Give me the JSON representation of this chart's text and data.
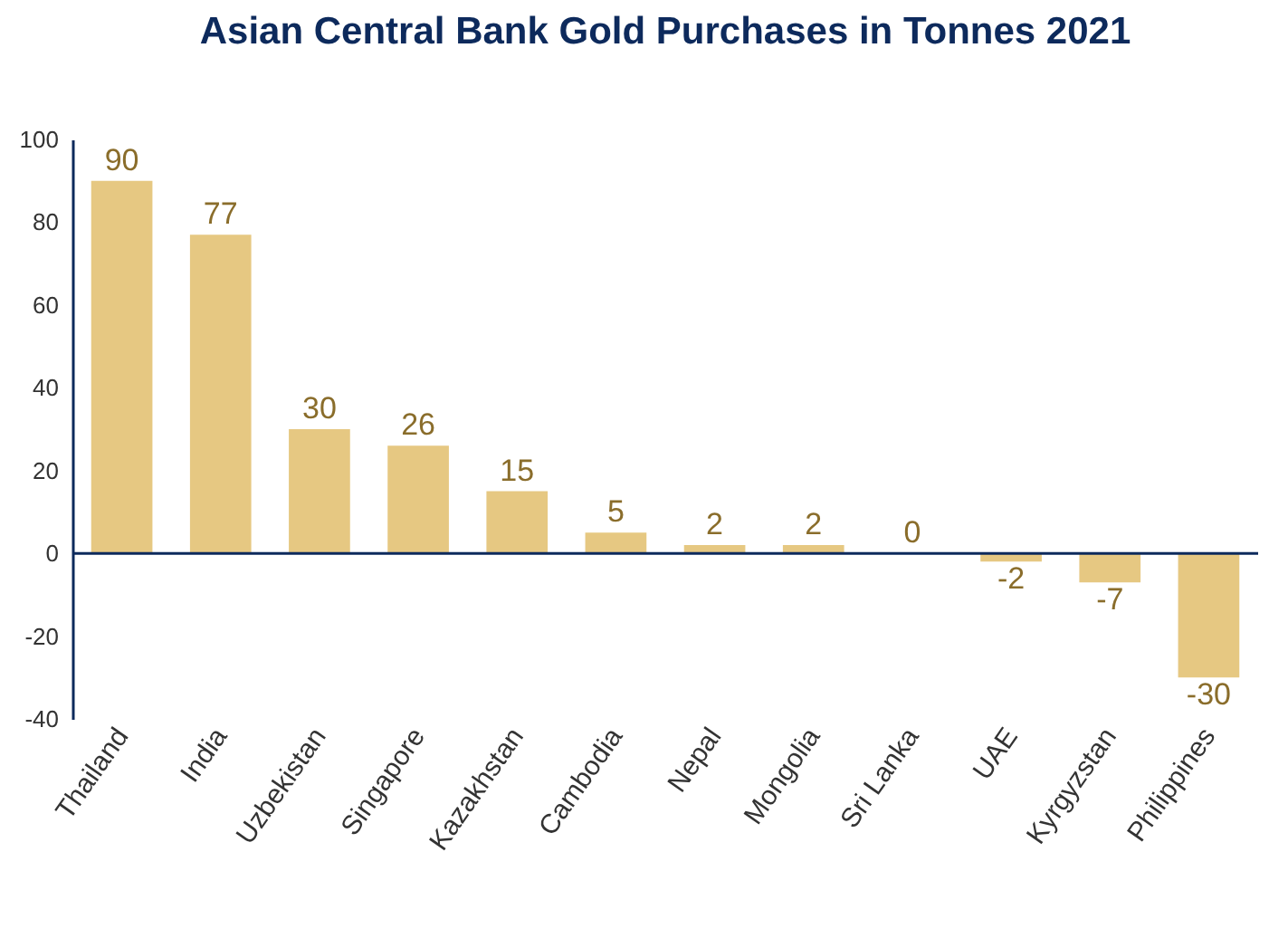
{
  "chart_data": {
    "type": "bar",
    "title": "Asian Central Bank Gold Purchases in Tonnes 2021",
    "categories": [
      "Thailand",
      "India",
      "Uzbekistan",
      "Singapore",
      "Kazakhstan",
      "Cambodia",
      "Nepal",
      "Mongolia",
      "Sri Lanka",
      "UAE",
      "Kyrgyzstan",
      "Philippines"
    ],
    "values": [
      90,
      77,
      30,
      26,
      15,
      5,
      2,
      2,
      0,
      -2,
      -7,
      -30
    ],
    "color": "#e6c882",
    "ylim": [
      -40,
      100
    ],
    "yticks": [
      -40,
      -20,
      0,
      20,
      40,
      60,
      80,
      100
    ],
    "grid": false,
    "data_labels": true,
    "ref_lines": [
      {
        "axis": "y",
        "value": 0,
        "color": "#0d2a5c"
      }
    ]
  }
}
